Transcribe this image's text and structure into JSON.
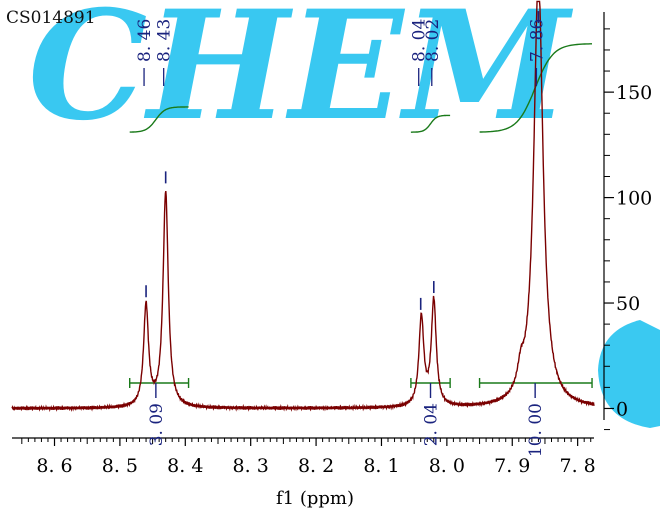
{
  "sample_id": "CS014891",
  "watermark_text": "CHEM",
  "colors": {
    "spectrum": "#7a0000",
    "integral": "#1a7a1a",
    "label": "#1a237e",
    "axis": "#000000",
    "watermark": "#29c4f0"
  },
  "chart_data": {
    "type": "line",
    "title": "",
    "xlabel": "f1 (ppm)",
    "ylabel": "",
    "x_reversed": true,
    "xlim": [
      8.665,
      7.775
    ],
    "ylim": [
      -14,
      188
    ],
    "x_ticks": [
      "8.6",
      "8.5",
      "8.4",
      "8.3",
      "8.2",
      "8.1",
      "8.0",
      "7.9",
      "7.8"
    ],
    "y_ticks": [
      "0",
      "50",
      "100",
      "150"
    ],
    "peaks": [
      {
        "ppm": 8.46,
        "height": 48,
        "width": 0.0045
      },
      {
        "ppm": 8.43,
        "height": 102,
        "width": 0.0048
      },
      {
        "ppm": 8.039,
        "height": 42,
        "width": 0.0045
      },
      {
        "ppm": 8.02,
        "height": 50,
        "width": 0.0045
      },
      {
        "ppm": 7.86,
        "height": 205,
        "width": 0.0085
      },
      {
        "ppm": 7.887,
        "height": 10,
        "width": 0.006
      }
    ],
    "peak_labels": [
      {
        "ppm": 8.46,
        "text": "8.46"
      },
      {
        "ppm": 8.43,
        "text": "8.43"
      },
      {
        "ppm": 8.04,
        "text": "8.04"
      },
      {
        "ppm": 8.02,
        "text": "8.02"
      },
      {
        "ppm": 7.86,
        "text": "7.86"
      }
    ],
    "integrals": [
      {
        "from": 8.485,
        "to": 8.395,
        "center": 8.445,
        "value": "3.09",
        "curve_low": 131,
        "curve_high": 143
      },
      {
        "from": 8.055,
        "to": 7.995,
        "center": 8.025,
        "value": "2.04",
        "curve_low": 131,
        "curve_high": 139
      },
      {
        "from": 7.95,
        "to": 7.778,
        "center": 7.865,
        "value": "10.00",
        "curve_low": 131,
        "curve_high": 173
      }
    ]
  }
}
